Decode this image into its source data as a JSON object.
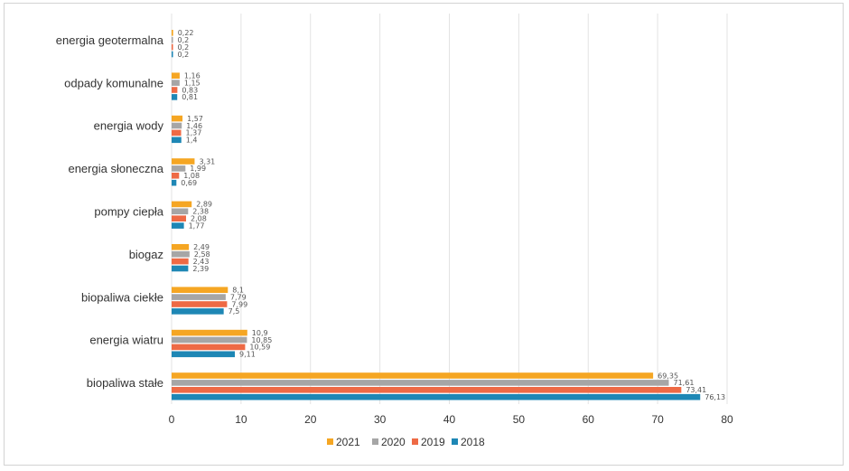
{
  "chart_data": {
    "type": "bar",
    "orientation": "horizontal",
    "title": "",
    "xlabel": "",
    "ylabel": "",
    "xlim": [
      0,
      80
    ],
    "x_ticks": [
      "0",
      "10",
      "20",
      "30",
      "40",
      "50",
      "60",
      "70",
      "80"
    ],
    "grid": "vertical",
    "legend_position": "bottom",
    "categories": [
      "energia geotermalna",
      "odpady komunalne",
      "energia wody",
      "energia słoneczna",
      "pompy ciepła",
      "biogaz",
      "biopaliwa ciekłe",
      "energia wiatru",
      "biopaliwa stałe"
    ],
    "series": [
      {
        "name": "2021",
        "color": "#f5a623",
        "values": [
          0.22,
          1.16,
          1.57,
          3.31,
          2.89,
          2.49,
          8.1,
          10.9,
          69.35
        ],
        "labels": [
          "0,22",
          "1,16",
          "1,57",
          "3,31",
          "2,89",
          "2,49",
          "8,1",
          "10,9",
          "69,35"
        ]
      },
      {
        "name": "2020",
        "color": "#a6a6a6",
        "values": [
          0.2,
          1.15,
          1.46,
          1.99,
          2.38,
          2.58,
          7.79,
          10.85,
          71.61
        ],
        "labels": [
          "0,2",
          "1,15",
          "1,46",
          "1,99",
          "2,38",
          "2,58",
          "7,79",
          "10,85",
          "71,61"
        ]
      },
      {
        "name": "2019",
        "color": "#ee6a45",
        "values": [
          0.2,
          0.83,
          1.37,
          1.08,
          2.08,
          2.43,
          7.99,
          10.59,
          73.41
        ],
        "labels": [
          "0,2",
          "0,83",
          "1,37",
          "1,08",
          "2,08",
          "2,43",
          "7,99",
          "10,59",
          "73,41"
        ]
      },
      {
        "name": "2018",
        "color": "#1e87b5",
        "values": [
          0.2,
          0.81,
          1.4,
          0.69,
          1.77,
          2.39,
          7.5,
          9.11,
          76.13
        ],
        "labels": [
          "0,2",
          "0,81",
          "1,4",
          "0,69",
          "1,77",
          "2,39",
          "7,5",
          "9,11",
          "76,13"
        ]
      }
    ]
  }
}
